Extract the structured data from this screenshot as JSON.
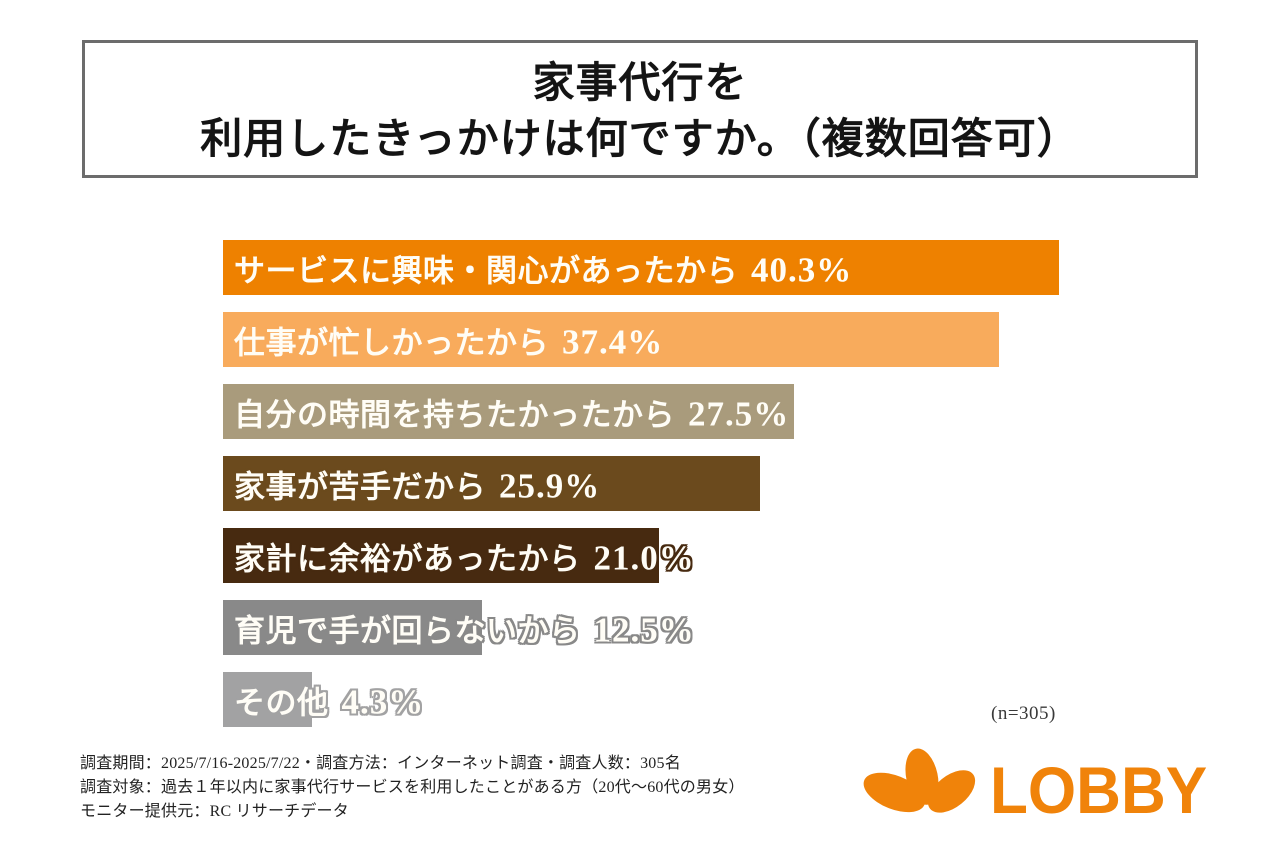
{
  "title": {
    "line1": "家事代行を",
    "line2": "利用したきっかけは何ですか。（複数回答可）"
  },
  "chart_data": {
    "type": "bar",
    "orientation": "horizontal",
    "title": "家事代行を利用したきっかけは何ですか。（複数回答可）",
    "categories": [
      "サービスに興味・関心があったから",
      "仕事が忙しかったから",
      "自分の時間を持ちたかったから",
      "家事が苦手だから",
      "家計に余裕があったから",
      "育児で手が回らないから",
      "その他"
    ],
    "values": [
      40.3,
      37.4,
      27.5,
      25.9,
      21.0,
      12.5,
      4.3
    ],
    "unit": "%",
    "bar_colors": [
      "#ee8100",
      "#f8ab5c",
      "#a99b7c",
      "#6b4a1d",
      "#472a10",
      "#898989",
      "#a2a2a3"
    ],
    "xlim": [
      0,
      45
    ],
    "grid": false,
    "legend": "none",
    "value_labels": [
      "40.3%",
      "37.4%",
      "27.5%",
      "25.9%",
      "21.0%",
      "12.5%",
      "4.3%"
    ],
    "sample_size_note": "(n=305)"
  },
  "footnotes": [
    "調査期間：2025/7/16-2025/7/22・調査方法：インターネット調査・調査人数：305名",
    "調査対象：過去１年以内に家事代行サービスを利用したことがある方（20代〜60代の男女）",
    "モニター提供元：RC リサーチデータ"
  ],
  "logo": {
    "text": "LOBBY",
    "color": "#f0830a",
    "mark": "three-petal-mark"
  }
}
